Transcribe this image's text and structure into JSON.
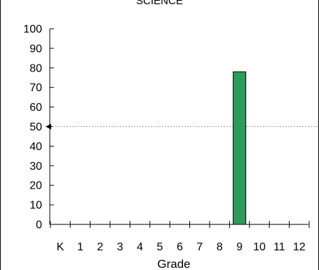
{
  "chart_data": {
    "type": "bar",
    "title": "SCIENCE",
    "xlabel": "Grade",
    "ylabel": "",
    "categories": [
      "K",
      "1",
      "2",
      "3",
      "4",
      "5",
      "6",
      "7",
      "8",
      "9",
      "10",
      "11",
      "12"
    ],
    "values": [
      null,
      null,
      null,
      null,
      null,
      null,
      null,
      null,
      null,
      78,
      null,
      null,
      null
    ],
    "ylim": [
      0,
      100
    ],
    "yticks": [
      "0",
      "10",
      "20",
      "30",
      "40",
      "50",
      "60",
      "70",
      "80",
      "90",
      "100"
    ],
    "reference_line": 50,
    "grid": false,
    "colors": {
      "bar": "#2e9b5a",
      "bar_stroke": "#000000",
      "reference_line": "#9a9a9a",
      "axis": "#000000"
    }
  }
}
